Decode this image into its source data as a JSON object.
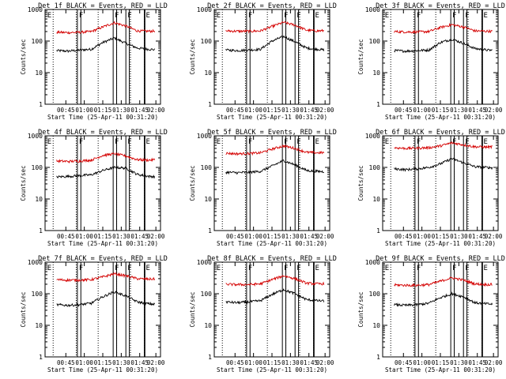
{
  "figure": {
    "y_axis_label": "Counts/sec",
    "x_axis_label": "Start Time (25-Apr-11 00:31:20)",
    "colors": {
      "events": "#000000",
      "lld": "#d40000",
      "axes": "#000000"
    }
  },
  "chart_data": [
    {
      "type": "line",
      "title": "Det 1f BLACK = Events, RED = LLD",
      "xlabel": "Start Time (25-Apr-11 00:31:20)",
      "ylabel": "Counts/sec",
      "y_scale": "log",
      "ylim": [
        1,
        1000
      ],
      "y_tick_labels": [
        "1",
        "10",
        "100",
        "1000"
      ],
      "x_tick_labels": [
        "00:45",
        "01:00",
        "01:15",
        "01:30",
        "01:45",
        "02:00"
      ],
      "x_minutes": [
        0,
        10,
        20,
        30,
        40,
        50,
        60,
        70,
        80,
        90,
        100
      ],
      "series": [
        {
          "values": [
            null,
            50,
            48,
            52,
            55,
            90,
            125,
            85,
            60,
            55,
            52
          ]
        },
        {
          "values": [
            null,
            190,
            185,
            190,
            200,
            280,
            380,
            300,
            210,
            205,
            210
          ]
        }
      ],
      "markers": [
        "E",
        "F",
        "F",
        "F",
        "E"
      ]
    },
    {
      "type": "line",
      "title": "Det 2f BLACK = Events, RED = LLD",
      "xlabel": "Start Time (25-Apr-11 00:31:20)",
      "ylabel": "Counts/sec",
      "y_scale": "log",
      "ylim": [
        1,
        1000
      ],
      "y_tick_labels": [
        "1",
        "10",
        "100",
        "1000"
      ],
      "x_tick_labels": [
        "00:45",
        "01:00",
        "01:15",
        "01:30",
        "01:45",
        "02:00"
      ],
      "x_minutes": [
        0,
        10,
        20,
        30,
        40,
        50,
        60,
        70,
        80,
        90,
        100
      ],
      "series": [
        {
          "values": [
            null,
            52,
            50,
            52,
            55,
            100,
            140,
            95,
            60,
            55,
            50
          ]
        },
        {
          "values": [
            null,
            210,
            205,
            205,
            210,
            290,
            390,
            320,
            220,
            210,
            215
          ]
        }
      ],
      "markers": [
        "E",
        "F",
        "F",
        "F",
        "E"
      ]
    },
    {
      "type": "line",
      "title": "Det 3f BLACK = Events, RED = LLD",
      "xlabel": "Start Time (25-Apr-11 00:31:20)",
      "ylabel": "Counts/sec",
      "y_scale": "log",
      "ylim": [
        1,
        1000
      ],
      "y_tick_labels": [
        "1",
        "10",
        "100",
        "1000"
      ],
      "x_tick_labels": [
        "00:45",
        "01:00",
        "01:15",
        "01:30",
        "01:45",
        "02:00"
      ],
      "x_minutes": [
        0,
        10,
        20,
        30,
        40,
        50,
        60,
        70,
        80,
        90,
        100
      ],
      "series": [
        {
          "values": [
            null,
            50,
            48,
            50,
            52,
            90,
            115,
            85,
            58,
            52,
            50
          ]
        },
        {
          "values": [
            null,
            200,
            195,
            195,
            200,
            270,
            330,
            280,
            210,
            205,
            205
          ]
        }
      ],
      "markers": [
        "E",
        "F",
        "F",
        "F",
        "E"
      ]
    },
    {
      "type": "line",
      "title": "Det 4f BLACK = Events, RED = LLD",
      "xlabel": "Start Time (25-Apr-11 00:31:20)",
      "ylabel": "Counts/sec",
      "y_scale": "log",
      "ylim": [
        1,
        1000
      ],
      "y_tick_labels": [
        "1",
        "10",
        "100",
        "1000"
      ],
      "x_tick_labels": [
        "00:45",
        "01:00",
        "01:15",
        "01:30",
        "01:45",
        "02:00"
      ],
      "x_minutes": [
        0,
        10,
        20,
        30,
        40,
        50,
        60,
        70,
        80,
        90,
        100
      ],
      "series": [
        {
          "values": [
            null,
            50,
            52,
            55,
            58,
            80,
            100,
            95,
            60,
            52,
            50
          ]
        },
        {
          "values": [
            null,
            160,
            155,
            160,
            170,
            240,
            270,
            230,
            175,
            170,
            180
          ]
        }
      ],
      "markers": [
        "E",
        "F",
        "F",
        "F",
        "E"
      ]
    },
    {
      "type": "line",
      "title": "Det 5f BLACK = Events, RED = LLD",
      "xlabel": "Start Time (25-Apr-11 00:31:20)",
      "ylabel": "Counts/sec",
      "y_scale": "log",
      "ylim": [
        1,
        1000
      ],
      "y_tick_labels": [
        "1",
        "10",
        "100",
        "1000"
      ],
      "x_tick_labels": [
        "00:45",
        "01:00",
        "01:15",
        "01:30",
        "01:45",
        "02:00"
      ],
      "x_minutes": [
        0,
        10,
        20,
        30,
        40,
        50,
        60,
        70,
        80,
        90,
        100
      ],
      "series": [
        {
          "values": [
            null,
            70,
            68,
            70,
            75,
            110,
            165,
            120,
            80,
            75,
            72
          ]
        },
        {
          "values": [
            null,
            280,
            270,
            275,
            290,
            380,
            480,
            400,
            300,
            290,
            300
          ]
        }
      ],
      "markers": [
        "E",
        "F",
        "F",
        "F",
        "E"
      ]
    },
    {
      "type": "line",
      "title": "Det 6f BLACK = Events, RED = LLD",
      "xlabel": "Start Time (25-Apr-11 00:31:20)",
      "ylabel": "Counts/sec",
      "y_scale": "log",
      "ylim": [
        1,
        1000
      ],
      "y_tick_labels": [
        "1",
        "10",
        "100",
        "1000"
      ],
      "x_tick_labels": [
        "00:45",
        "01:00",
        "01:15",
        "01:30",
        "01:45",
        "02:00"
      ],
      "x_minutes": [
        0,
        10,
        20,
        30,
        40,
        50,
        60,
        70,
        80,
        90,
        100
      ],
      "series": [
        {
          "values": [
            null,
            90,
            85,
            90,
            100,
            130,
            190,
            140,
            105,
            100,
            95
          ]
        },
        {
          "values": [
            null,
            420,
            400,
            410,
            420,
            480,
            600,
            520,
            450,
            440,
            460
          ]
        }
      ],
      "markers": [
        "E",
        "F",
        "F",
        "F",
        "E"
      ]
    },
    {
      "type": "line",
      "title": "Det 7f BLACK = Events, RED = LLD",
      "xlabel": "Start Time (25-Apr-11 00:31:20)",
      "ylabel": "Counts/sec",
      "y_scale": "log",
      "ylim": [
        1,
        1000
      ],
      "y_tick_labels": [
        "1",
        "10",
        "100",
        "1000"
      ],
      "x_tick_labels": [
        "00:45",
        "01:00",
        "01:15",
        "01:30",
        "01:45",
        "02:00"
      ],
      "x_minutes": [
        0,
        10,
        20,
        30,
        40,
        50,
        60,
        70,
        80,
        90,
        100
      ],
      "series": [
        {
          "values": [
            null,
            45,
            43,
            45,
            50,
            80,
            115,
            85,
            55,
            48,
            45
          ]
        },
        {
          "values": [
            null,
            280,
            270,
            270,
            280,
            340,
            430,
            370,
            300,
            290,
            300
          ]
        }
      ],
      "markers": [
        "E",
        "F",
        "F",
        "F",
        "E"
      ]
    },
    {
      "type": "line",
      "title": "Det 8f BLACK = Events, RED = LLD",
      "xlabel": "Start Time (25-Apr-11 00:31:20)",
      "ylabel": "Counts/sec",
      "y_scale": "log",
      "ylim": [
        1,
        1000
      ],
      "y_tick_labels": [
        "1",
        "10",
        "100",
        "1000"
      ],
      "x_tick_labels": [
        "00:45",
        "01:00",
        "01:15",
        "01:30",
        "01:45",
        "02:00"
      ],
      "x_minutes": [
        0,
        10,
        20,
        30,
        40,
        50,
        60,
        70,
        80,
        90,
        100
      ],
      "series": [
        {
          "values": [
            null,
            55,
            52,
            55,
            60,
            95,
            135,
            100,
            65,
            60,
            58
          ]
        },
        {
          "values": [
            null,
            200,
            195,
            195,
            205,
            280,
            370,
            300,
            215,
            205,
            210
          ]
        }
      ],
      "markers": [
        "E",
        "F",
        "F",
        "F",
        "E"
      ]
    },
    {
      "type": "line",
      "title": "Det 9f BLACK = Events, RED = LLD",
      "xlabel": "Start Time (25-Apr-11 00:31:20)",
      "ylabel": "Counts/sec",
      "y_scale": "log",
      "ylim": [
        1,
        1000
      ],
      "y_tick_labels": [
        "1",
        "10",
        "100",
        "1000"
      ],
      "x_tick_labels": [
        "00:45",
        "01:00",
        "01:15",
        "01:30",
        "01:45",
        "02:00"
      ],
      "x_minutes": [
        0,
        10,
        20,
        30,
        40,
        50,
        60,
        70,
        80,
        90,
        100
      ],
      "series": [
        {
          "values": [
            null,
            45,
            43,
            45,
            50,
            75,
            100,
            80,
            52,
            48,
            45
          ]
        },
        {
          "values": [
            null,
            190,
            185,
            185,
            195,
            250,
            320,
            270,
            205,
            195,
            200
          ]
        }
      ],
      "markers": [
        "E",
        "F",
        "F",
        "F",
        "E"
      ]
    }
  ]
}
